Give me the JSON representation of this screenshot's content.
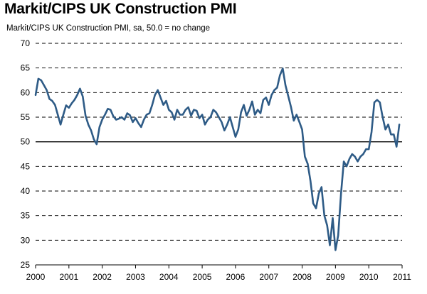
{
  "chart_data": {
    "type": "line",
    "title": "Markit/CIPS UK Construction PMI",
    "subtitle": "Markit/CIPS UK Construction PMI, sa, 50.0 = no change",
    "xlabel": "",
    "ylabel": "",
    "ylim": [
      25,
      70
    ],
    "yticks": [
      "25",
      "30",
      "35",
      "40",
      "45",
      "50",
      "55",
      "60",
      "65",
      "70"
    ],
    "xlim": [
      2000,
      2011
    ],
    "xticks": [
      "2000",
      "2001",
      "2002",
      "2003",
      "2004",
      "2005",
      "2006",
      "2007",
      "2008",
      "2009",
      "2010",
      "2011"
    ],
    "grid": "dashed horizontal",
    "reference_line": 50,
    "colors": {
      "line": "#2e5b86",
      "grid": "#000000"
    },
    "series": [
      {
        "x": [
          2000.0,
          2000.083,
          2000.167,
          2000.25,
          2000.333,
          2000.417,
          2000.5,
          2000.583,
          2000.667,
          2000.75,
          2000.833,
          2000.917,
          2001.0,
          2001.083,
          2001.167,
          2001.25,
          2001.333,
          2001.417,
          2001.5,
          2001.583,
          2001.667,
          2001.75,
          2001.833,
          2001.917,
          2002.0,
          2002.083,
          2002.167,
          2002.25,
          2002.333,
          2002.417,
          2002.5,
          2002.583,
          2002.667,
          2002.75,
          2002.833,
          2002.917,
          2003.0,
          2003.083,
          2003.167,
          2003.25,
          2003.333,
          2003.417,
          2003.5,
          2003.583,
          2003.667,
          2003.75,
          2003.833,
          2003.917,
          2004.0,
          2004.083,
          2004.167,
          2004.25,
          2004.333,
          2004.417,
          2004.5,
          2004.583,
          2004.667,
          2004.75,
          2004.833,
          2004.917,
          2005.0,
          2005.083,
          2005.167,
          2005.25,
          2005.333,
          2005.417,
          2005.5,
          2005.583,
          2005.667,
          2005.75,
          2005.833,
          2005.917,
          2006.0,
          2006.083,
          2006.167,
          2006.25,
          2006.333,
          2006.417,
          2006.5,
          2006.583,
          2006.667,
          2006.75,
          2006.833,
          2006.917,
          2007.0,
          2007.083,
          2007.167,
          2007.25,
          2007.333,
          2007.417,
          2007.5,
          2007.583,
          2007.667,
          2007.75,
          2007.833,
          2007.917,
          2008.0,
          2008.083,
          2008.167,
          2008.25,
          2008.333,
          2008.417,
          2008.5,
          2008.583,
          2008.667,
          2008.75,
          2008.833,
          2008.917,
          2009.0,
          2009.083,
          2009.167,
          2009.25,
          2009.333,
          2009.417,
          2009.5,
          2009.583,
          2009.667,
          2009.75,
          2009.833,
          2009.917,
          2010.0,
          2010.083,
          2010.167,
          2010.25,
          2010.333,
          2010.417,
          2010.5,
          2010.583,
          2010.667,
          2010.75,
          2010.833,
          2010.917
        ],
        "values": [
          59.5,
          62.8,
          62.5,
          61.5,
          60.5,
          58.7,
          58.3,
          57.5,
          55.5,
          53.5,
          55.5,
          57.4,
          56.9,
          57.8,
          58.5,
          59.5,
          60.8,
          59.2,
          55.3,
          53.5,
          52.3,
          50.5,
          49.5,
          53.0,
          54.5,
          55.5,
          56.7,
          56.5,
          55.2,
          54.5,
          54.7,
          55.0,
          54.5,
          55.8,
          55.4,
          54.0,
          54.8,
          53.8,
          53.0,
          54.5,
          55.5,
          55.8,
          57.5,
          59.5,
          60.5,
          59.0,
          57.5,
          58.3,
          56.5,
          56.0,
          54.5,
          56.5,
          55.5,
          55.5,
          56.5,
          57.0,
          55.3,
          56.5,
          56.3,
          54.8,
          55.5,
          53.5,
          54.5,
          55.0,
          56.5,
          56.0,
          55.0,
          54.0,
          52.3,
          53.5,
          55.0,
          53.0,
          51.0,
          52.5,
          56.0,
          57.5,
          55.3,
          56.5,
          58.2,
          55.5,
          56.5,
          55.8,
          58.5,
          59.0,
          57.5,
          59.5,
          60.5,
          61.0,
          63.5,
          64.9,
          61.5,
          59.3,
          57.0,
          54.3,
          55.5,
          54.0,
          52.5,
          47.0,
          45.5,
          42.0,
          37.5,
          36.5,
          39.5,
          40.8,
          35.0,
          33.0,
          29.0,
          34.5,
          28.0,
          31.0,
          39.5,
          46.0,
          45.0,
          46.5,
          47.5,
          47.0,
          46.0,
          47.0,
          47.5,
          48.5,
          48.5,
          52.0,
          58.0,
          58.5,
          58.0,
          55.0,
          52.5,
          53.5,
          51.5,
          51.5,
          49.0,
          53.5
        ]
      }
    ]
  }
}
